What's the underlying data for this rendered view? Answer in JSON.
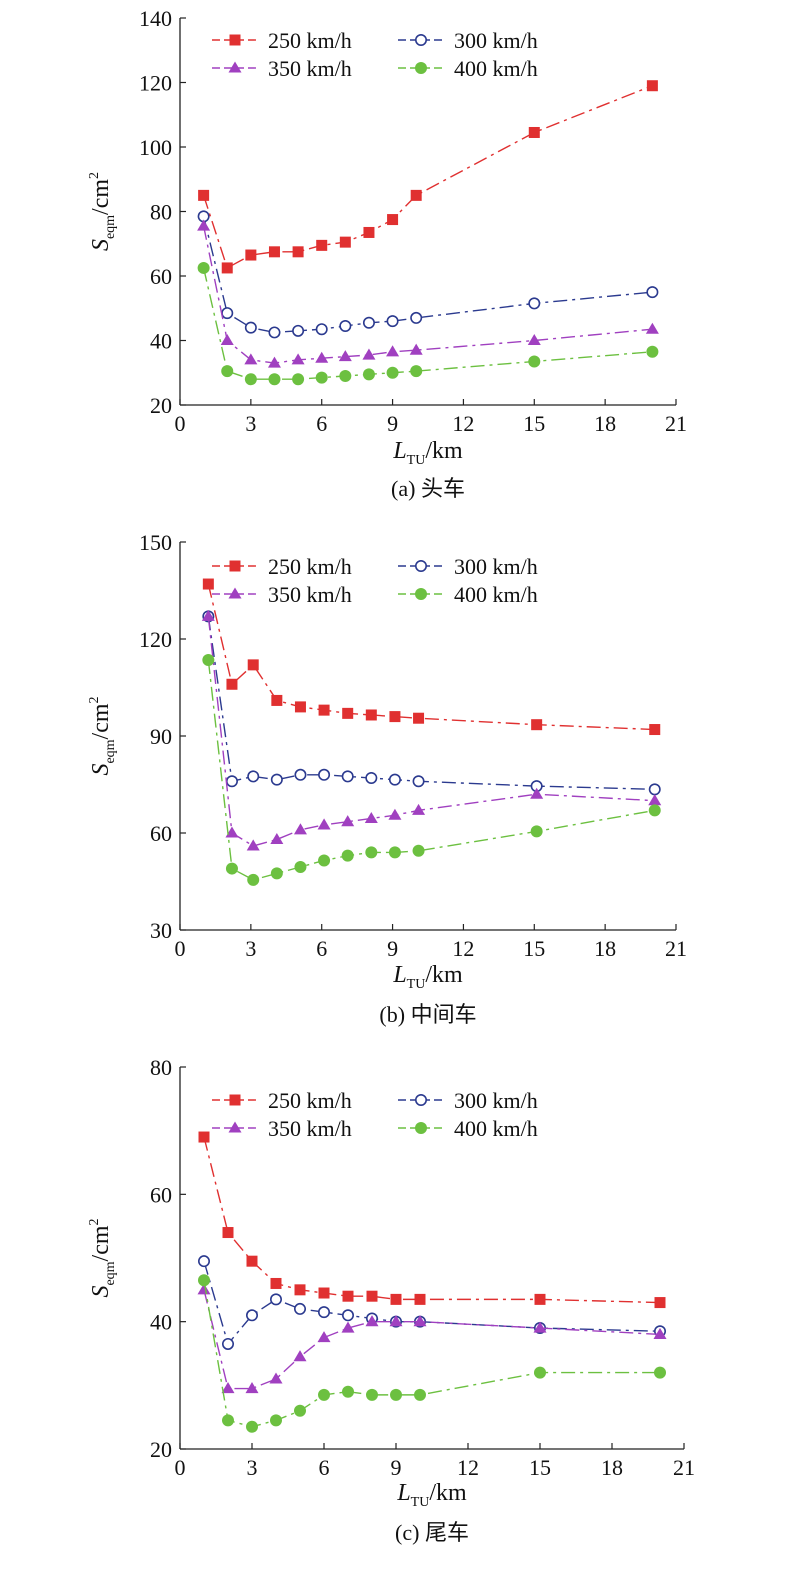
{
  "chart_data": [
    {
      "type": "line",
      "caption": "(a) 头车",
      "x_label": {
        "var": "L",
        "sub": "TU",
        "unit": "/km"
      },
      "y_label": {
        "var": "S",
        "sub": "eqm",
        "unit": "/cm",
        "sup": "2"
      },
      "xlim": [
        0,
        21
      ],
      "ylim": [
        20,
        140
      ],
      "xticks": [
        0,
        3,
        6,
        9,
        12,
        15,
        18,
        21
      ],
      "yticks": [
        20,
        40,
        60,
        80,
        100,
        120,
        140
      ],
      "x": [
        1,
        2,
        3,
        4,
        5,
        6,
        7,
        8,
        9,
        10,
        15,
        20
      ],
      "series": [
        {
          "name": "250 km/h",
          "color": "#e03030",
          "marker": "square",
          "values": [
            85,
            62.5,
            66.5,
            67.5,
            67.5,
            69.5,
            70.5,
            73.5,
            77.5,
            85,
            104.5,
            119
          ]
        },
        {
          "name": "300 km/h",
          "color": "#2b3a8f",
          "marker": "circle-open",
          "values": [
            78.5,
            48.5,
            44,
            42.5,
            43,
            43.5,
            44.5,
            45.5,
            46,
            47,
            51.5,
            55
          ]
        },
        {
          "name": "350 km/h",
          "color": "#a040c0",
          "marker": "triangle",
          "values": [
            75.5,
            40,
            34,
            33,
            34,
            34.5,
            35,
            35.5,
            36.5,
            37,
            40,
            43.5
          ]
        },
        {
          "name": "400 km/h",
          "color": "#6cc040",
          "marker": "circle",
          "values": [
            62.5,
            30.5,
            28,
            28,
            28,
            28.5,
            29,
            29.5,
            30,
            30.5,
            33.5,
            36.5
          ]
        }
      ]
    },
    {
      "type": "line",
      "caption": "(b) 中间车",
      "x_label": {
        "var": "L",
        "sub": "TU",
        "unit": "/km"
      },
      "y_label": {
        "var": "S",
        "sub": "eqm",
        "unit": "/cm",
        "sup": "2"
      },
      "xlim": [
        0,
        21
      ],
      "ylim": [
        30,
        150
      ],
      "xticks": [
        0,
        3,
        6,
        9,
        12,
        15,
        18,
        21
      ],
      "yticks": [
        30,
        60,
        90,
        120,
        150
      ],
      "x": [
        1.2,
        2.2,
        3.1,
        4.1,
        5.1,
        6.1,
        7.1,
        8.1,
        9.1,
        10.1,
        15.1,
        20.1
      ],
      "series": [
        {
          "name": "250 km/h",
          "color": "#e03030",
          "marker": "square",
          "values": [
            137,
            106,
            112,
            101,
            99,
            98,
            97,
            96.5,
            96,
            95.5,
            93.5,
            92
          ]
        },
        {
          "name": "300 km/h",
          "color": "#2b3a8f",
          "marker": "circle-open",
          "values": [
            127,
            76,
            77.5,
            76.5,
            78,
            78,
            77.5,
            77,
            76.5,
            76,
            74.5,
            73.5
          ]
        },
        {
          "name": "350 km/h",
          "color": "#a040c0",
          "marker": "triangle",
          "values": [
            127,
            60,
            56,
            58,
            61,
            62.5,
            63.5,
            64.5,
            65.5,
            67,
            72,
            70
          ]
        },
        {
          "name": "400 km/h",
          "color": "#6cc040",
          "marker": "circle",
          "values": [
            113.5,
            49,
            45.5,
            47.5,
            49.5,
            51.5,
            53,
            54,
            54,
            54.5,
            60.5,
            67
          ]
        }
      ]
    },
    {
      "type": "line",
      "caption": "(c) 尾车",
      "x_label": {
        "var": "L",
        "sub": "TU",
        "unit": "/km"
      },
      "y_label": {
        "var": "S",
        "sub": "eqm",
        "unit": "/cm",
        "sup": "2"
      },
      "xlim": [
        0,
        21
      ],
      "ylim": [
        20,
        80
      ],
      "xticks": [
        0,
        3,
        6,
        9,
        12,
        15,
        18,
        21
      ],
      "yticks": [
        20,
        40,
        60,
        80
      ],
      "x": [
        1,
        2,
        3,
        4,
        5,
        6,
        7,
        8,
        9,
        10,
        15,
        20
      ],
      "series": [
        {
          "name": "250 km/h",
          "color": "#e03030",
          "marker": "square",
          "values": [
            69,
            54,
            49.5,
            46,
            45,
            44.5,
            44,
            44,
            43.5,
            43.5,
            43.5,
            43
          ]
        },
        {
          "name": "300 km/h",
          "color": "#2b3a8f",
          "marker": "circle-open",
          "values": [
            49.5,
            36.5,
            41,
            43.5,
            42,
            41.5,
            41,
            40.5,
            40,
            40,
            39,
            38.5
          ]
        },
        {
          "name": "350 km/h",
          "color": "#a040c0",
          "marker": "triangle",
          "values": [
            45,
            29.5,
            29.5,
            31,
            34.5,
            37.5,
            39,
            40,
            40,
            40,
            39,
            38
          ]
        },
        {
          "name": "400 km/h",
          "color": "#6cc040",
          "marker": "circle",
          "values": [
            46.5,
            24.5,
            23.5,
            24.5,
            26,
            28.5,
            29,
            28.5,
            28.5,
            28.5,
            32,
            32
          ]
        }
      ]
    }
  ]
}
